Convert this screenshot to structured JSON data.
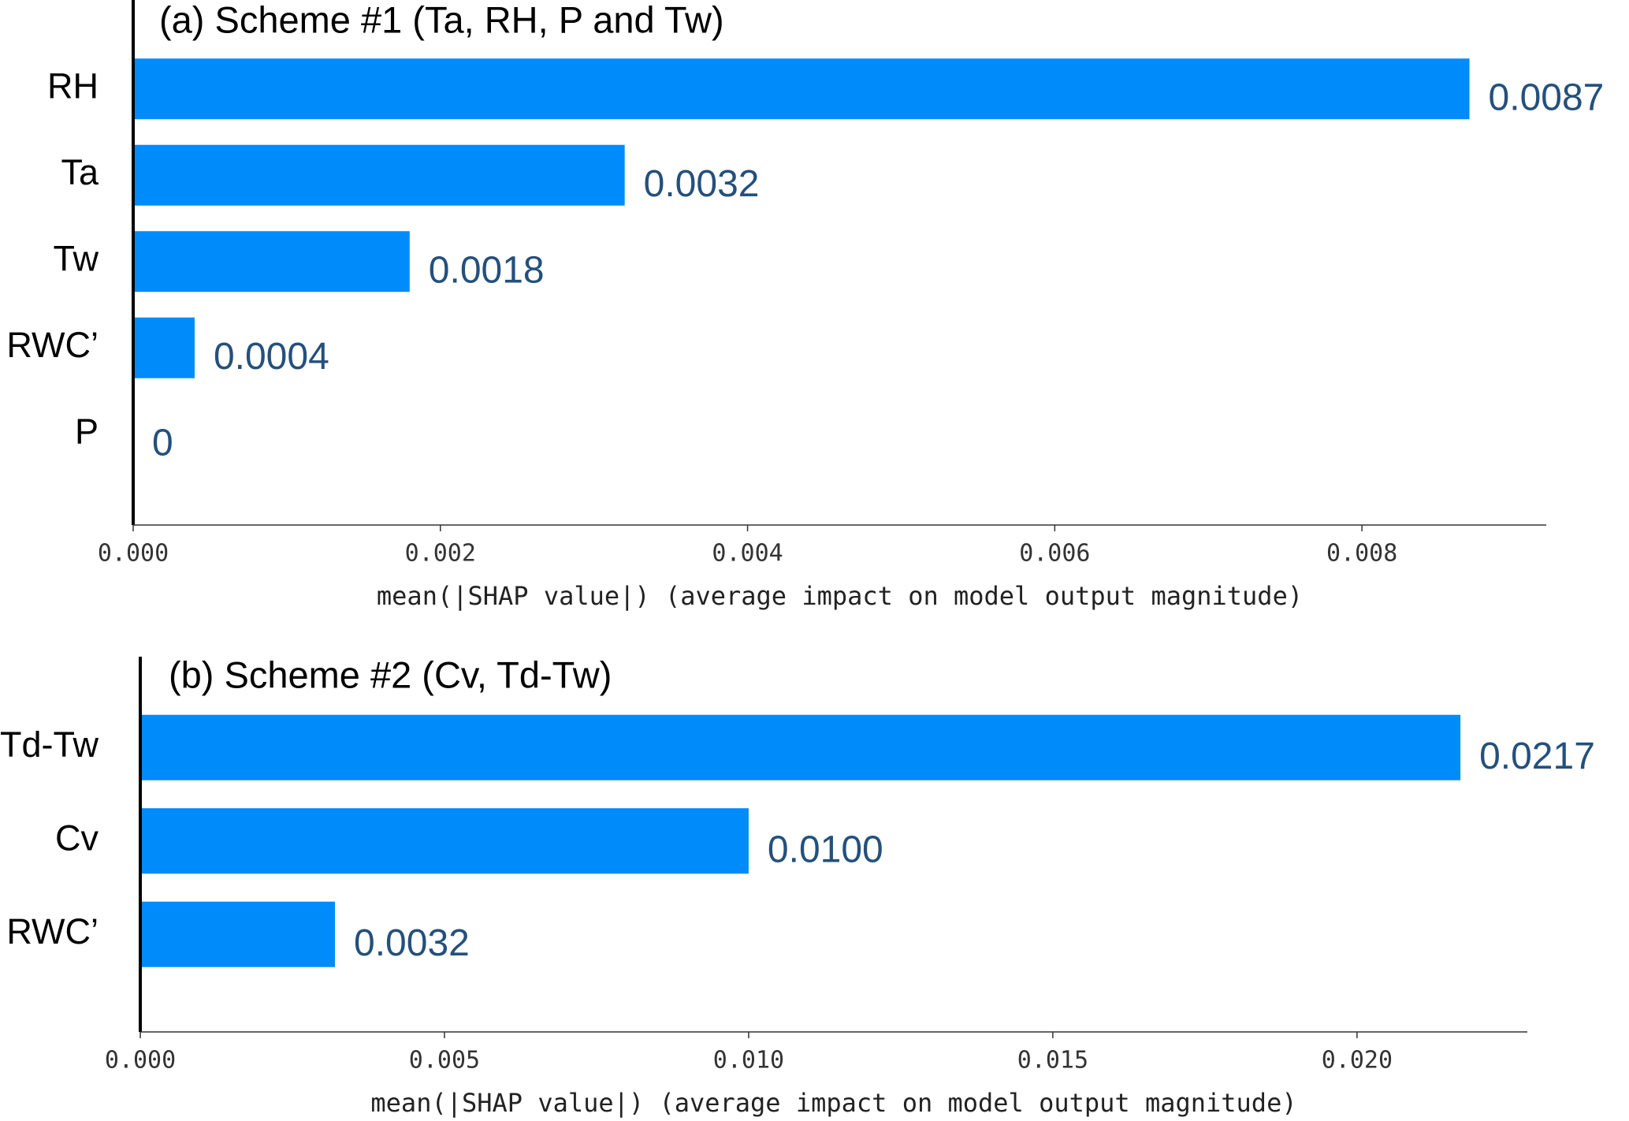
{
  "chart_data": [
    {
      "type": "barh",
      "title": "(a) Scheme #1 (Ta, RH, P and Tw)",
      "categories": [
        "RH",
        "Ta",
        "Tw",
        "RWC’",
        "P"
      ],
      "values": [
        0.0087,
        0.0032,
        0.0018,
        0.0004,
        0
      ],
      "value_labels": [
        "0.0087",
        "0.0032",
        "0.0018",
        "0.0004",
        "0"
      ],
      "color": "#008bfb",
      "xlim": [
        0,
        0.0092
      ],
      "xticks": [
        {
          "value": 0,
          "label": "0.000"
        },
        {
          "value": 0.002,
          "label": "0.002"
        },
        {
          "value": 0.004,
          "label": "0.004"
        },
        {
          "value": 0.006,
          "label": "0.006"
        },
        {
          "value": 0.008,
          "label": "0.008"
        }
      ],
      "xlabel": "mean(|SHAP value|) (average impact on model output magnitude)"
    },
    {
      "type": "barh",
      "title": "(b) Scheme #2 (Cv, Td-Tw)",
      "categories": [
        "Td-Tw",
        "Cv",
        "RWC’"
      ],
      "values": [
        0.0217,
        0.01,
        0.0032
      ],
      "value_labels": [
        "0.0217",
        "0.0100",
        "0.0032"
      ],
      "color": "#008bfb",
      "xlim": [
        0,
        0.0228
      ],
      "xticks": [
        {
          "value": 0,
          "label": "0.000"
        },
        {
          "value": 0.005,
          "label": "0.005"
        },
        {
          "value": 0.01,
          "label": "0.010"
        },
        {
          "value": 0.015,
          "label": "0.015"
        },
        {
          "value": 0.02,
          "label": "0.020"
        }
      ],
      "xlabel": "mean(|SHAP value|) (average impact on model output magnitude)"
    }
  ]
}
